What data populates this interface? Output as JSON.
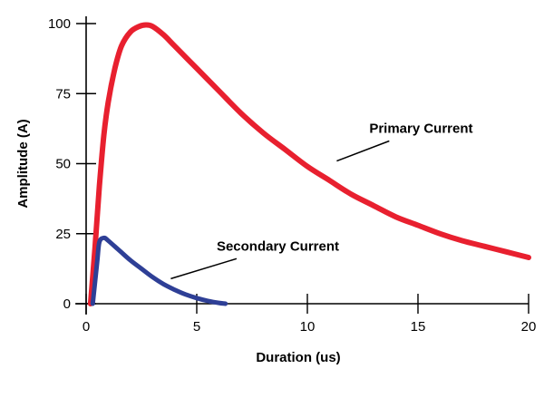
{
  "chart_data": {
    "type": "line",
    "xlabel": "Duration (us)",
    "ylabel": "Amplitude (A)",
    "xlim": [
      0,
      20
    ],
    "ylim": [
      0,
      100
    ],
    "xticks": [
      "0",
      "5",
      "10",
      "15",
      "20"
    ],
    "yticks": [
      "0",
      "25",
      "50",
      "75",
      "100"
    ],
    "grid": false,
    "series": [
      {
        "color": "#e8202f",
        "x": [
          0.2,
          0.4,
          0.6,
          0.8,
          1.0,
          1.3,
          1.6,
          2.0,
          2.4,
          2.7,
          3.0,
          3.5,
          4.0,
          5.0,
          6.0,
          7.0,
          8.0,
          9.0,
          10.0,
          11.0,
          12.0,
          13.0,
          14.0,
          15.0,
          16.0,
          17.0,
          18.0,
          19.0,
          20.0
        ],
        "values": [
          0,
          20,
          42,
          60,
          72,
          84,
          92,
          97,
          99,
          99.5,
          99,
          96,
          92,
          84,
          76,
          68,
          61,
          55,
          49,
          44,
          39,
          35,
          31,
          28,
          25,
          22.5,
          20.5,
          18.5,
          16.5
        ]
      },
      {
        "color": "#2e3f96",
        "x": [
          0.3,
          0.5,
          0.6,
          0.8,
          1.0,
          1.5,
          2.0,
          2.5,
          3.0,
          3.5,
          4.0,
          4.5,
          5.0,
          5.5,
          6.0,
          6.3
        ],
        "values": [
          0,
          15,
          22,
          23.5,
          22.5,
          19,
          15.5,
          12.5,
          9.5,
          7,
          5,
          3.3,
          2,
          1,
          0.3,
          0
        ]
      }
    ],
    "annotations": [
      {
        "text": "Primary Current",
        "x": 11,
        "y": 49,
        "label_x": 12.8,
        "label_y": 61
      },
      {
        "text": "Secondary Current",
        "x": 3.5,
        "y": 7,
        "label_x": 5.9,
        "label_y": 19
      }
    ]
  }
}
